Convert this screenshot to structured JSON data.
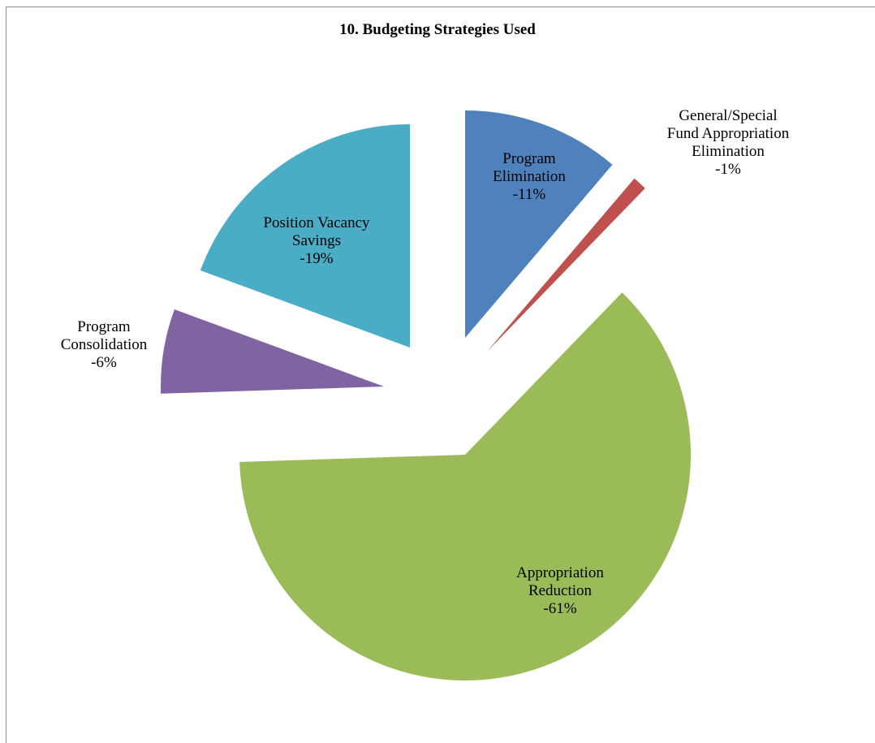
{
  "chart_data": {
    "type": "pie",
    "title": "10. Budgeting Strategies Used",
    "exploded": true,
    "slices": [
      {
        "label_lines": [
          "Program",
          "Elimination"
        ],
        "value": 11,
        "value_label": "-11%",
        "color": "#4F81BD",
        "label_position": "inside"
      },
      {
        "label_lines": [
          "General/Special",
          "Fund Appropriation",
          "Elimination"
        ],
        "value": 1,
        "value_label": "-1%",
        "color": "#C0504D",
        "label_position": "outside"
      },
      {
        "label_lines": [
          "Appropriation",
          "Reduction"
        ],
        "value": 61,
        "value_label": "-61%",
        "color": "#9BBB59",
        "label_position": "inside"
      },
      {
        "label_lines": [
          "Program",
          "Consolidation"
        ],
        "value": 6,
        "value_label": "-6%",
        "color": "#8064A2",
        "label_position": "outside"
      },
      {
        "label_lines": [
          "Position Vacancy",
          "Savings"
        ],
        "value": 19,
        "value_label": "-19%",
        "color": "#4BACC6",
        "label_position": "inside"
      }
    ]
  }
}
